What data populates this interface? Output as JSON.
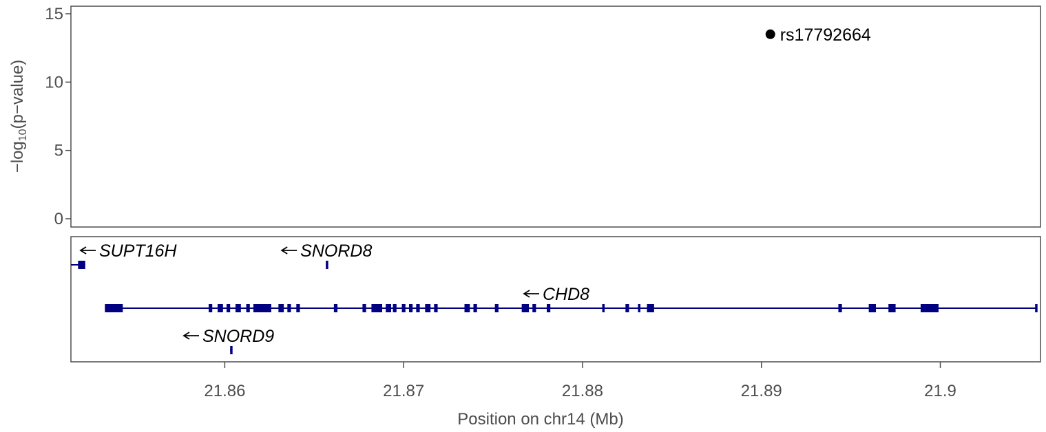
{
  "chart_data": {
    "type": "scatter",
    "title": "",
    "xlabel": "Position on chr14 (Mb)",
    "ylabel": {
      "prefix": "−log",
      "subscript": "10",
      "suffix": "(p−value)"
    },
    "xlim": [
      21.8514,
      21.9056
    ],
    "ylim": [
      0,
      15
    ],
    "x_ticks": [
      21.86,
      21.87,
      21.88,
      21.89,
      21.9
    ],
    "x_tick_labels": [
      "21.86",
      "21.87",
      "21.88",
      "21.89",
      "21.9"
    ],
    "y_ticks": [
      0,
      5,
      10,
      15
    ],
    "y_tick_labels": [
      "0",
      "5",
      "10",
      "15"
    ],
    "points": [
      {
        "label": "rs17792664",
        "x": 21.8905,
        "y": 13.5
      }
    ],
    "gene_track": {
      "color": "#000080",
      "genes": [
        {
          "name": "SUPT16H",
          "strand": "-",
          "row": 0,
          "start": 21.8514,
          "end": 21.8522,
          "exons": [
            [
              21.8518,
              21.8522
            ]
          ]
        },
        {
          "name": "SNORD8",
          "strand": "-",
          "row": 0,
          "start": 21.86565,
          "end": 21.86575,
          "exons": [
            [
              21.86565,
              21.86575
            ]
          ]
        },
        {
          "name": "CHD8",
          "strand": "-",
          "row": 1,
          "start": 21.8533,
          "end": 21.9054,
          "exons": [
            [
              21.8533,
              21.8543
            ],
            [
              21.8591,
              21.8593
            ],
            [
              21.8596,
              21.8599
            ],
            [
              21.8601,
              21.8603
            ],
            [
              21.8606,
              21.8609
            ],
            [
              21.8612,
              21.8614
            ],
            [
              21.8616,
              21.8626
            ],
            [
              21.863,
              21.8633
            ],
            [
              21.8635,
              21.8637
            ],
            [
              21.864,
              21.8642
            ],
            [
              21.8661,
              21.8663
            ],
            [
              21.8677,
              21.8679
            ],
            [
              21.8682,
              21.8688
            ],
            [
              21.869,
              21.8693
            ],
            [
              21.8694,
              21.8696
            ],
            [
              21.8699,
              21.8701
            ],
            [
              21.8703,
              21.8705
            ],
            [
              21.8707,
              21.8709
            ],
            [
              21.8712,
              21.8715
            ],
            [
              21.8717,
              21.8719
            ],
            [
              21.8734,
              21.8737
            ],
            [
              21.8739,
              21.8741
            ],
            [
              21.8751,
              21.8753
            ],
            [
              21.8766,
              21.877
            ],
            [
              21.8772,
              21.8774
            ],
            [
              21.878,
              21.8782
            ],
            [
              21.8811,
              21.8812
            ],
            [
              21.8824,
              21.8826
            ],
            [
              21.8831,
              21.8832
            ],
            [
              21.8836,
              21.884
            ],
            [
              21.8943,
              21.8945
            ],
            [
              21.896,
              21.8964
            ],
            [
              21.8971,
              21.8975
            ],
            [
              21.8989,
              21.8999
            ],
            [
              21.9053,
              21.9054
            ]
          ]
        },
        {
          "name": "SNORD9",
          "strand": "-",
          "row": 2,
          "start": 21.8603,
          "end": 21.8604,
          "exons": [
            [
              21.8603,
              21.8604
            ]
          ]
        }
      ]
    },
    "grid": false
  }
}
